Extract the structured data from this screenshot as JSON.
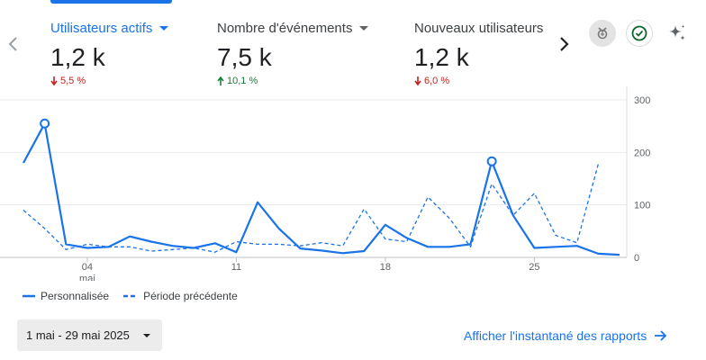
{
  "metrics": [
    {
      "title": "Utilisateurs actifs",
      "value": "1,2 k",
      "delta": "5,5 %",
      "direction": "down",
      "has_dropdown": true,
      "active": true
    },
    {
      "title": "Nombre d'événements",
      "value": "7,5 k",
      "delta": "10,1 %",
      "direction": "up",
      "has_dropdown": true,
      "active": false
    },
    {
      "title": "Nouveaux utilisateurs",
      "value": "1,2 k",
      "delta": "6,0 %",
      "direction": "down",
      "has_dropdown": false,
      "active": false
    }
  ],
  "toolbar_icons": [
    "insights-icon",
    "check-circle-icon",
    "sparkle-icon"
  ],
  "chart_data": {
    "type": "line",
    "x": [
      "2025-05-01",
      "2025-05-02",
      "2025-05-03",
      "2025-05-04",
      "2025-05-05",
      "2025-05-06",
      "2025-05-07",
      "2025-05-08",
      "2025-05-09",
      "2025-05-10",
      "2025-05-11",
      "2025-05-12",
      "2025-05-13",
      "2025-05-14",
      "2025-05-15",
      "2025-05-16",
      "2025-05-17",
      "2025-05-18",
      "2025-05-19",
      "2025-05-20",
      "2025-05-21",
      "2025-05-22",
      "2025-05-23",
      "2025-05-24",
      "2025-05-25",
      "2025-05-26",
      "2025-05-27",
      "2025-05-28",
      "2025-05-29"
    ],
    "x_tick_labels": [
      {
        "date": "2025-05-04",
        "label": "04",
        "sublabel": "mai"
      },
      {
        "date": "2025-05-11",
        "label": "11",
        "sublabel": ""
      },
      {
        "date": "2025-05-18",
        "label": "18",
        "sublabel": ""
      },
      {
        "date": "2025-05-25",
        "label": "25",
        "sublabel": ""
      }
    ],
    "y_ticks": [
      0,
      100,
      200,
      300
    ],
    "ylim": [
      0,
      300
    ],
    "grid": true,
    "y_axis_side": "right",
    "series": [
      {
        "name": "Personnalisée",
        "style": "solid",
        "color": "#1a73e8",
        "values": [
          180,
          255,
          25,
          18,
          20,
          40,
          30,
          22,
          18,
          27,
          10,
          105,
          55,
          17,
          13,
          8,
          12,
          62,
          37,
          20,
          20,
          25,
          183,
          80,
          18,
          20,
          22,
          7,
          5
        ],
        "highlight_points": [
          "2025-05-02",
          "2025-05-23"
        ]
      },
      {
        "name": "Période précédente",
        "style": "dashed",
        "color": "#1a73e8",
        "values": [
          90,
          55,
          15,
          25,
          20,
          20,
          12,
          15,
          18,
          10,
          30,
          25,
          25,
          22,
          28,
          22,
          92,
          35,
          30,
          115,
          75,
          20,
          140,
          80,
          122,
          42,
          28,
          178,
          null
        ]
      }
    ]
  },
  "legend": [
    {
      "label": "Personnalisée",
      "style": "solid"
    },
    {
      "label": "Période précédente",
      "style": "dashed"
    }
  ],
  "date_range": {
    "label": "1 mai - 29 mai 2025"
  },
  "snapshot_link": {
    "label": "Afficher l'instantané des rapports"
  }
}
